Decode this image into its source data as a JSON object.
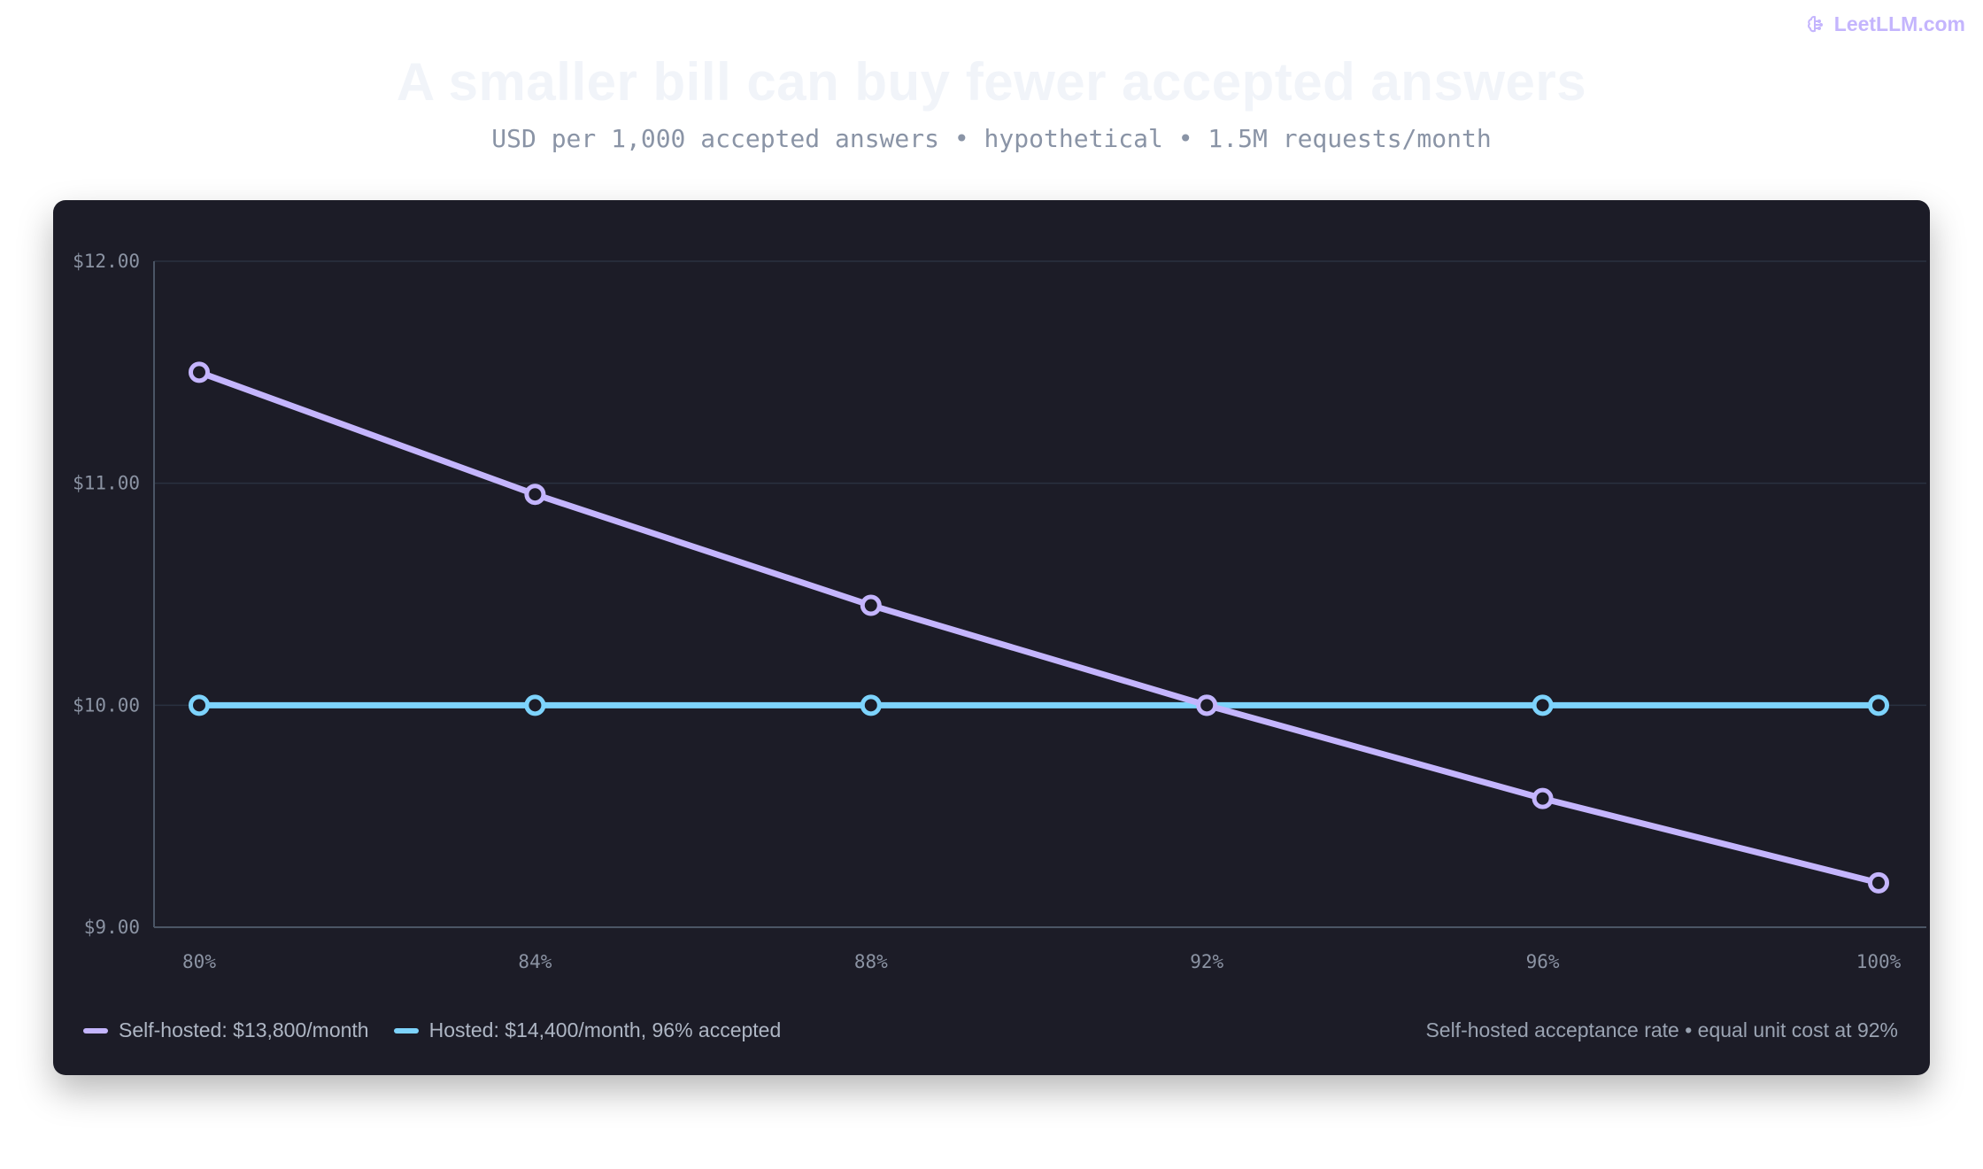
{
  "brand": {
    "name": "LeetLLM.com",
    "icon": "brain-icon",
    "color": "#c4b5fd"
  },
  "header": {
    "title": "A smaller bill can buy fewer accepted answers",
    "subtitle": "USD per 1,000 accepted answers • hypothetical • 1.5M requests/month"
  },
  "chart_data": {
    "type": "line",
    "x": [
      "80%",
      "84%",
      "88%",
      "92%",
      "96%",
      "100%"
    ],
    "x_values": [
      80,
      84,
      88,
      92,
      96,
      100
    ],
    "ylim": [
      9,
      12
    ],
    "yticks": [
      9,
      10,
      11,
      12
    ],
    "ytick_labels": [
      "$9.00",
      "$10.00",
      "$11.00",
      "$12.00"
    ],
    "xlabel": "Self-hosted acceptance rate • equal unit cost at 92%",
    "ylabel": "",
    "grid": true,
    "legend_position": "bottom-left",
    "series": [
      {
        "name": "Self-hosted: $13,800/month",
        "color": "#c4b5fd",
        "values": [
          11.5,
          10.95,
          10.45,
          10.0,
          9.58,
          9.2
        ]
      },
      {
        "name": "Hosted: $14,400/month, 96% accepted",
        "color": "#7dd3fc",
        "values": [
          10.0,
          10.0,
          10.0,
          10.0,
          10.0,
          10.0
        ]
      }
    ]
  },
  "colors": {
    "card_background": "#1c1c27",
    "grid": "#2a3140",
    "axis": "#4b5565"
  }
}
